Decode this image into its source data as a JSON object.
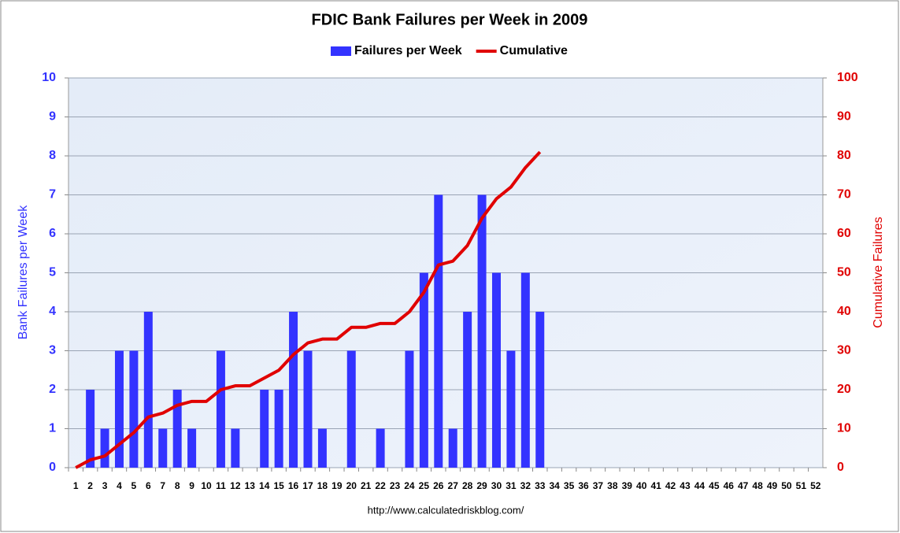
{
  "chart_data": {
    "type": "bar_line",
    "title": "FDIC Bank Failures per Week in 2009",
    "y_label": "Bank Failures per Week",
    "y2_label": "Cumulative Failures",
    "source": "http://www.calculatedriskblog.com/",
    "categories": [
      1,
      2,
      3,
      4,
      5,
      6,
      7,
      8,
      9,
      10,
      11,
      12,
      13,
      14,
      15,
      16,
      17,
      18,
      19,
      20,
      21,
      22,
      23,
      24,
      25,
      26,
      27,
      28,
      29,
      30,
      31,
      32,
      33,
      34,
      35,
      36,
      37,
      38,
      39,
      40,
      41,
      42,
      43,
      44,
      45,
      46,
      47,
      48,
      49,
      50,
      51,
      52
    ],
    "series": [
      {
        "name": "Failures per Week",
        "type": "bar",
        "color": "#3333ff",
        "values": [
          0,
          2,
          1,
          3,
          3,
          4,
          1,
          2,
          1,
          0,
          3,
          1,
          0,
          2,
          2,
          4,
          3,
          1,
          0,
          3,
          0,
          1,
          0,
          3,
          5,
          7,
          1,
          4,
          7,
          5,
          3,
          5,
          4,
          null,
          null,
          null,
          null,
          null,
          null,
          null,
          null,
          null,
          null,
          null,
          null,
          null,
          null,
          null,
          null,
          null,
          null,
          null
        ]
      },
      {
        "name": "Cumulative",
        "type": "line",
        "color": "#e00000",
        "axis": "y2",
        "values": [
          0,
          2,
          3,
          6,
          9,
          13,
          14,
          16,
          17,
          17,
          20,
          21,
          21,
          23,
          25,
          29,
          32,
          33,
          33,
          36,
          36,
          37,
          37,
          40,
          45,
          52,
          53,
          57,
          64,
          69,
          72,
          77,
          81,
          null,
          null,
          null,
          null,
          null,
          null,
          null,
          null,
          null,
          null,
          null,
          null,
          null,
          null,
          null,
          null,
          null,
          null,
          null
        ]
      }
    ],
    "ylim": [
      0,
      10
    ],
    "yticks": [
      0,
      1,
      2,
      3,
      4,
      5,
      6,
      7,
      8,
      9,
      10
    ],
    "y2lim": [
      0,
      100
    ],
    "y2ticks": [
      0,
      10,
      20,
      30,
      40,
      50,
      60,
      70,
      80,
      90,
      100
    ],
    "grid": true,
    "legend": "top"
  }
}
